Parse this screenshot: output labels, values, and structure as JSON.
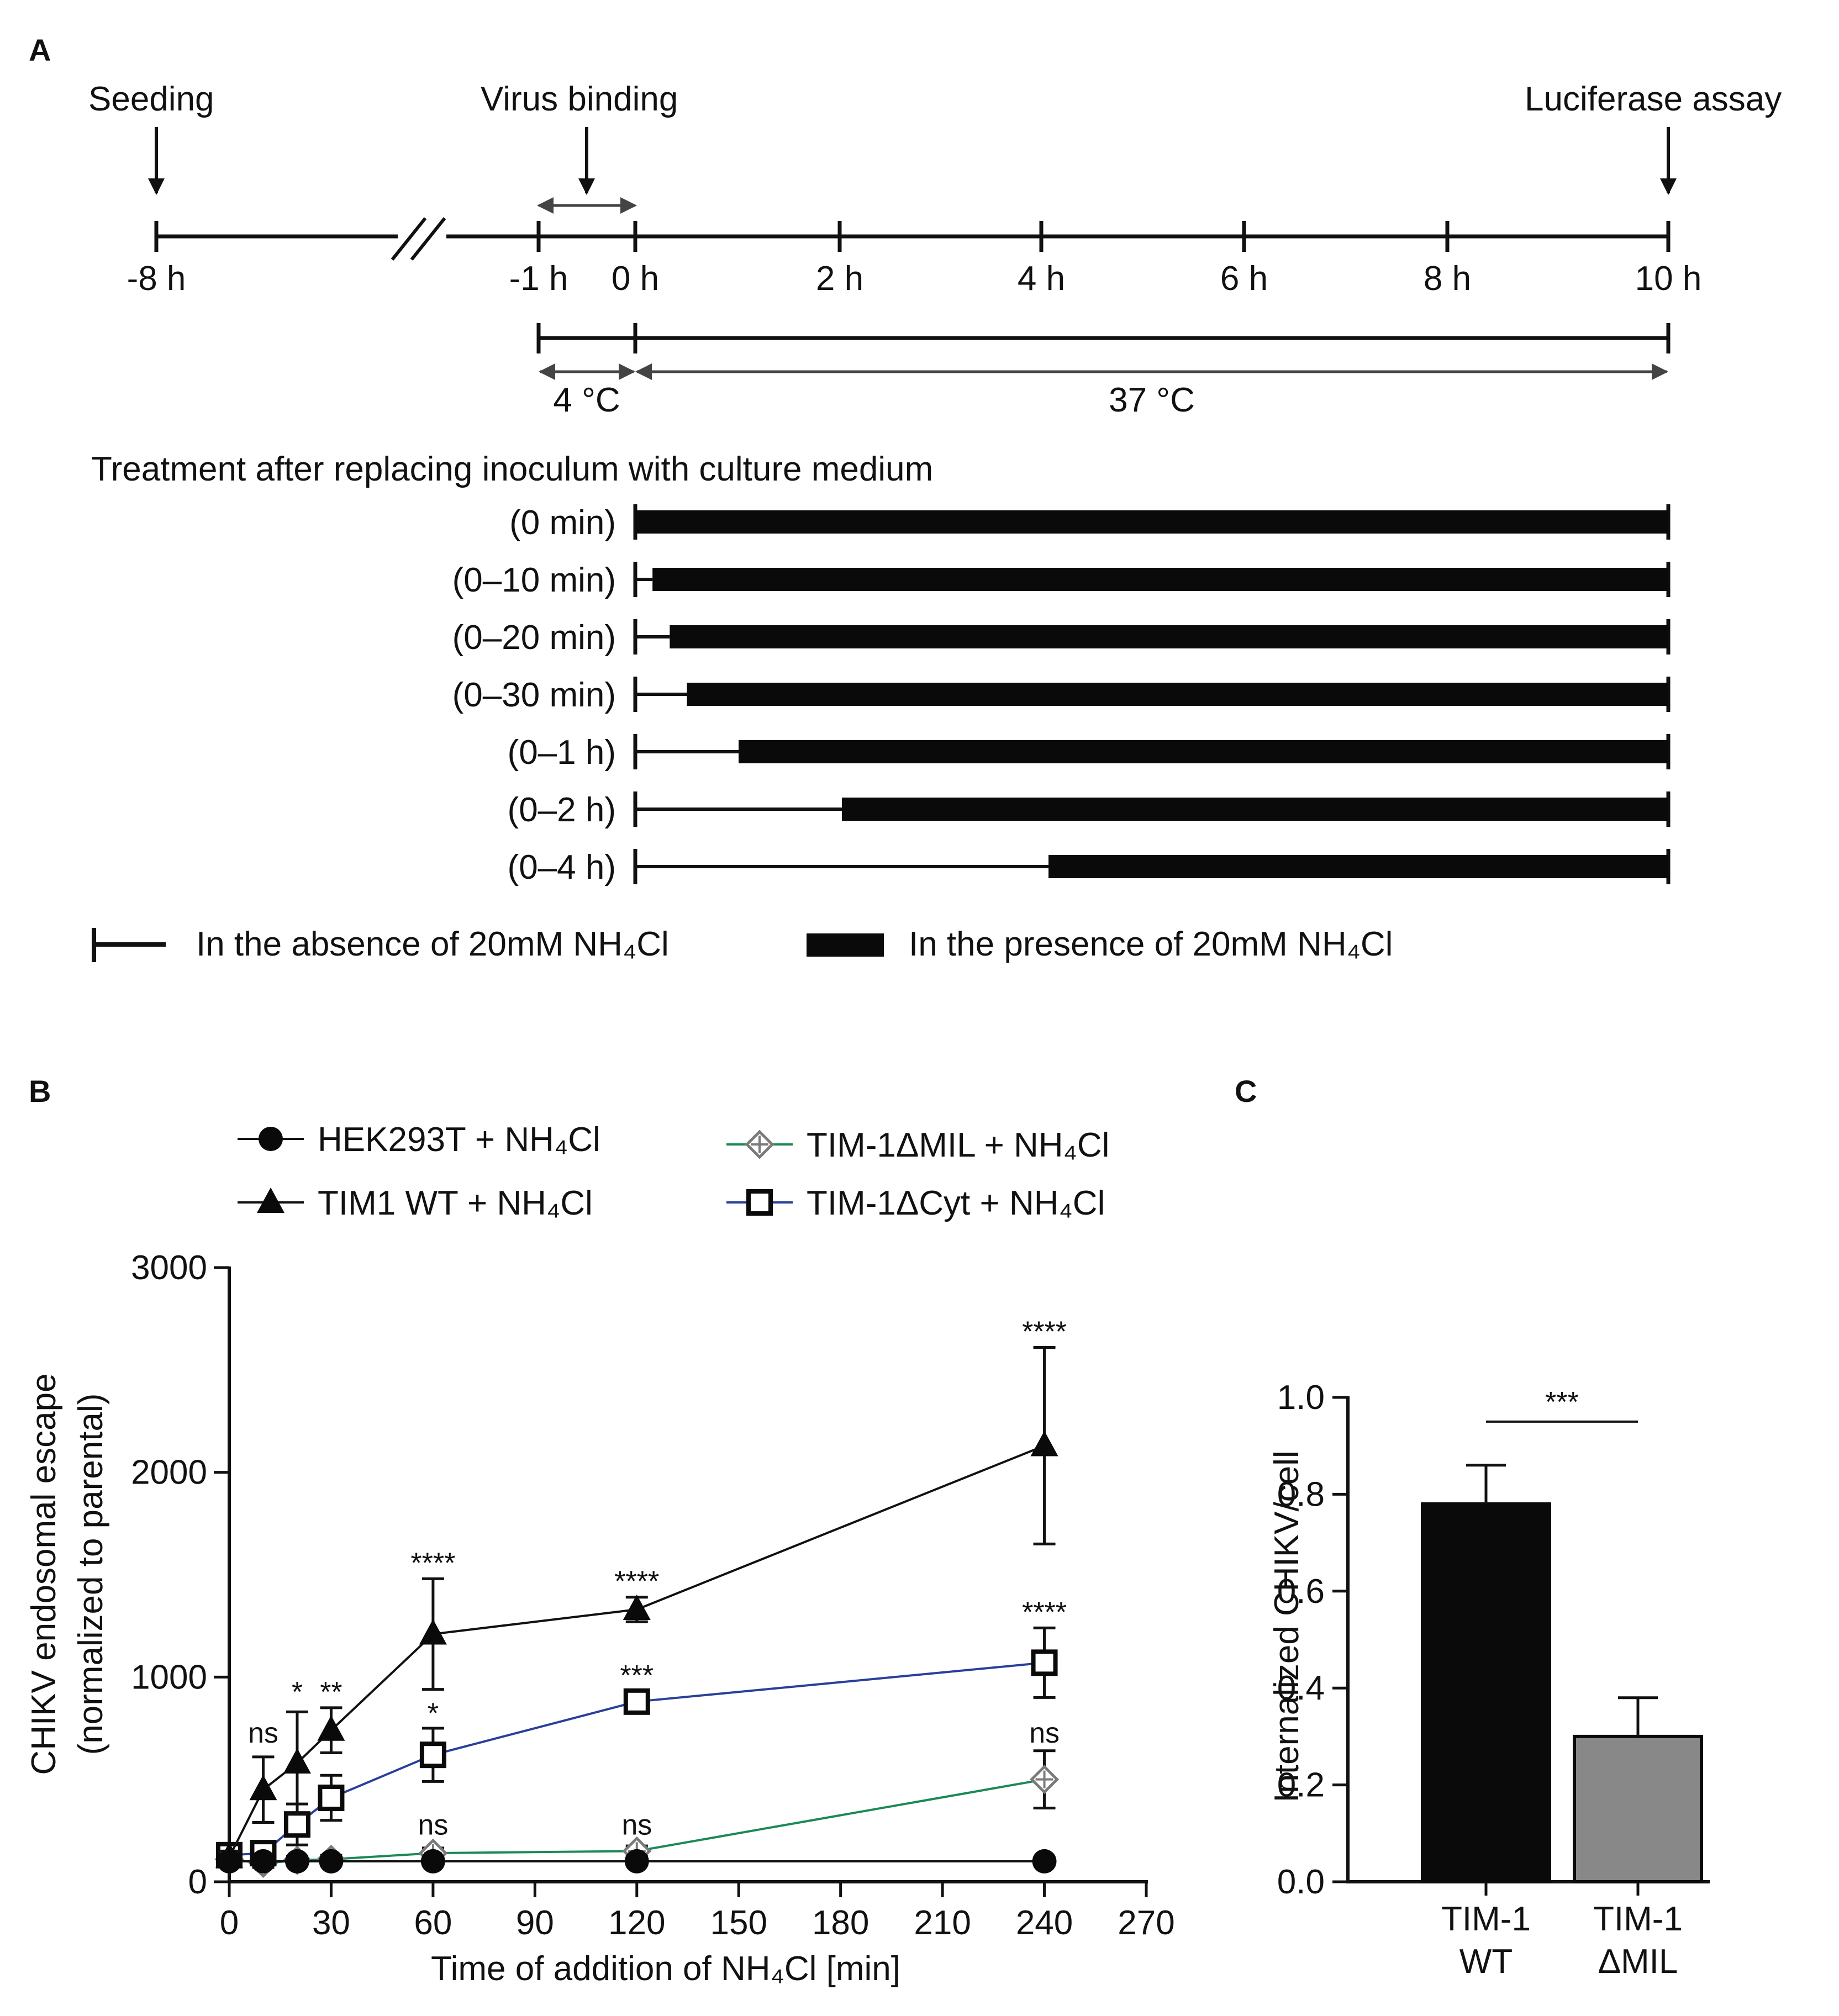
{
  "panels": {
    "a": "A",
    "b": "B",
    "c": "C"
  },
  "timeline": {
    "events": {
      "seeding": "Seeding",
      "virus_binding": "Virus binding",
      "luciferase": "Luciferase assay"
    },
    "ticks": [
      "-8 h",
      "-1 h",
      "0 h",
      "2 h",
      "4 h",
      "6 h",
      "8 h",
      "10 h"
    ],
    "temp_4": "4 °C",
    "temp_37": "37 °C",
    "treatment_title": "Treatment after replacing inoculum with culture medium",
    "treatments": [
      {
        "label": "(0 min)",
        "minutes": 0
      },
      {
        "label": "(0–10 min)",
        "minutes": 10
      },
      {
        "label": "(0–20 min)",
        "minutes": 20
      },
      {
        "label": "(0–30 min)",
        "minutes": 30
      },
      {
        "label": "(0–1 h)",
        "minutes": 60
      },
      {
        "label": "(0–2 h)",
        "minutes": 120
      },
      {
        "label": "(0–4 h)",
        "minutes": 240
      }
    ],
    "legend_absence": "In the absence of 20mM NH₄Cl",
    "legend_presence": "In the presence of 20mM NH₄Cl"
  },
  "chart_data": [
    {
      "id": "B",
      "type": "line",
      "xlabel": "Time of addition of NH₄Cl [min]",
      "ylabel_line1": "CHIKV endosomal escape",
      "ylabel_line2": "(normalized to parental)",
      "xlim": [
        0,
        270
      ],
      "ylim": [
        0,
        3000
      ],
      "xticks": [
        0,
        30,
        60,
        90,
        120,
        150,
        180,
        210,
        240,
        270
      ],
      "yticks": [
        0,
        1000,
        2000,
        3000
      ],
      "series": [
        {
          "name": "HEK293T + NH₄Cl",
          "color": "#111111",
          "marker": "circle",
          "x": [
            0,
            10,
            20,
            30,
            60,
            120,
            240
          ],
          "y": [
            100,
            100,
            100,
            100,
            100,
            100,
            100
          ],
          "err": [
            0,
            0,
            0,
            0,
            0,
            0,
            0
          ]
        },
        {
          "name": "TIM1 WT + NH₄Cl",
          "color": "#111111",
          "marker": "triangle",
          "x": [
            0,
            10,
            20,
            30,
            60,
            120,
            240
          ],
          "y": [
            120,
            450,
            580,
            740,
            1210,
            1330,
            2130
          ],
          "err": [
            30,
            160,
            250,
            110,
            270,
            60,
            480
          ]
        },
        {
          "name": "TIM-1ΔMIL + NH₄Cl",
          "color": "#1a8a55",
          "marker": "diamond",
          "x": [
            0,
            10,
            20,
            30,
            60,
            120,
            240
          ],
          "y": [
            110,
            90,
            105,
            110,
            140,
            150,
            500
          ],
          "err": [
            20,
            20,
            20,
            20,
            25,
            25,
            140
          ]
        },
        {
          "name": "TIM-1ΔCyt + NH₄Cl",
          "color": "#2a3f9a",
          "marker": "square",
          "x": [
            0,
            10,
            20,
            30,
            60,
            120,
            240
          ],
          "y": [
            130,
            140,
            280,
            410,
            620,
            880,
            1070
          ],
          "err": [
            25,
            40,
            100,
            110,
            130,
            50,
            170
          ]
        }
      ],
      "annotations": [
        {
          "x": 10,
          "y": 680,
          "text": "ns"
        },
        {
          "x": 20,
          "y": 880,
          "text": "*"
        },
        {
          "x": 30,
          "y": 880,
          "text": "**"
        },
        {
          "x": 60,
          "y": 1510,
          "text": "****"
        },
        {
          "x": 120,
          "y": 1420,
          "text": "****"
        },
        {
          "x": 240,
          "y": 2640,
          "text": "****"
        },
        {
          "x": 60,
          "y": 775,
          "text": "*"
        },
        {
          "x": 120,
          "y": 960,
          "text": "***"
        },
        {
          "x": 240,
          "y": 1270,
          "text": "****"
        },
        {
          "x": 240,
          "y": 680,
          "text": "ns"
        },
        {
          "x": 60,
          "y": 230,
          "text": "ns"
        },
        {
          "x": 120,
          "y": 230,
          "text": "ns"
        }
      ]
    },
    {
      "id": "C",
      "type": "bar",
      "ylabel": "Internalized CHIKV/cell",
      "ylim": [
        0,
        1.0
      ],
      "yticks": [
        "0.0",
        "0.2",
        "0.4",
        "0.6",
        "0.8",
        "1.0"
      ],
      "categories": [
        {
          "line1": "TIM-1",
          "line2": "WT"
        },
        {
          "line1": "TIM-1",
          "line2": "ΔMIL"
        }
      ],
      "values": [
        0.78,
        0.3
      ],
      "errors": [
        0.08,
        0.08
      ],
      "colors": [
        "#0a0a0a",
        "#888888"
      ],
      "significance": "***"
    }
  ]
}
